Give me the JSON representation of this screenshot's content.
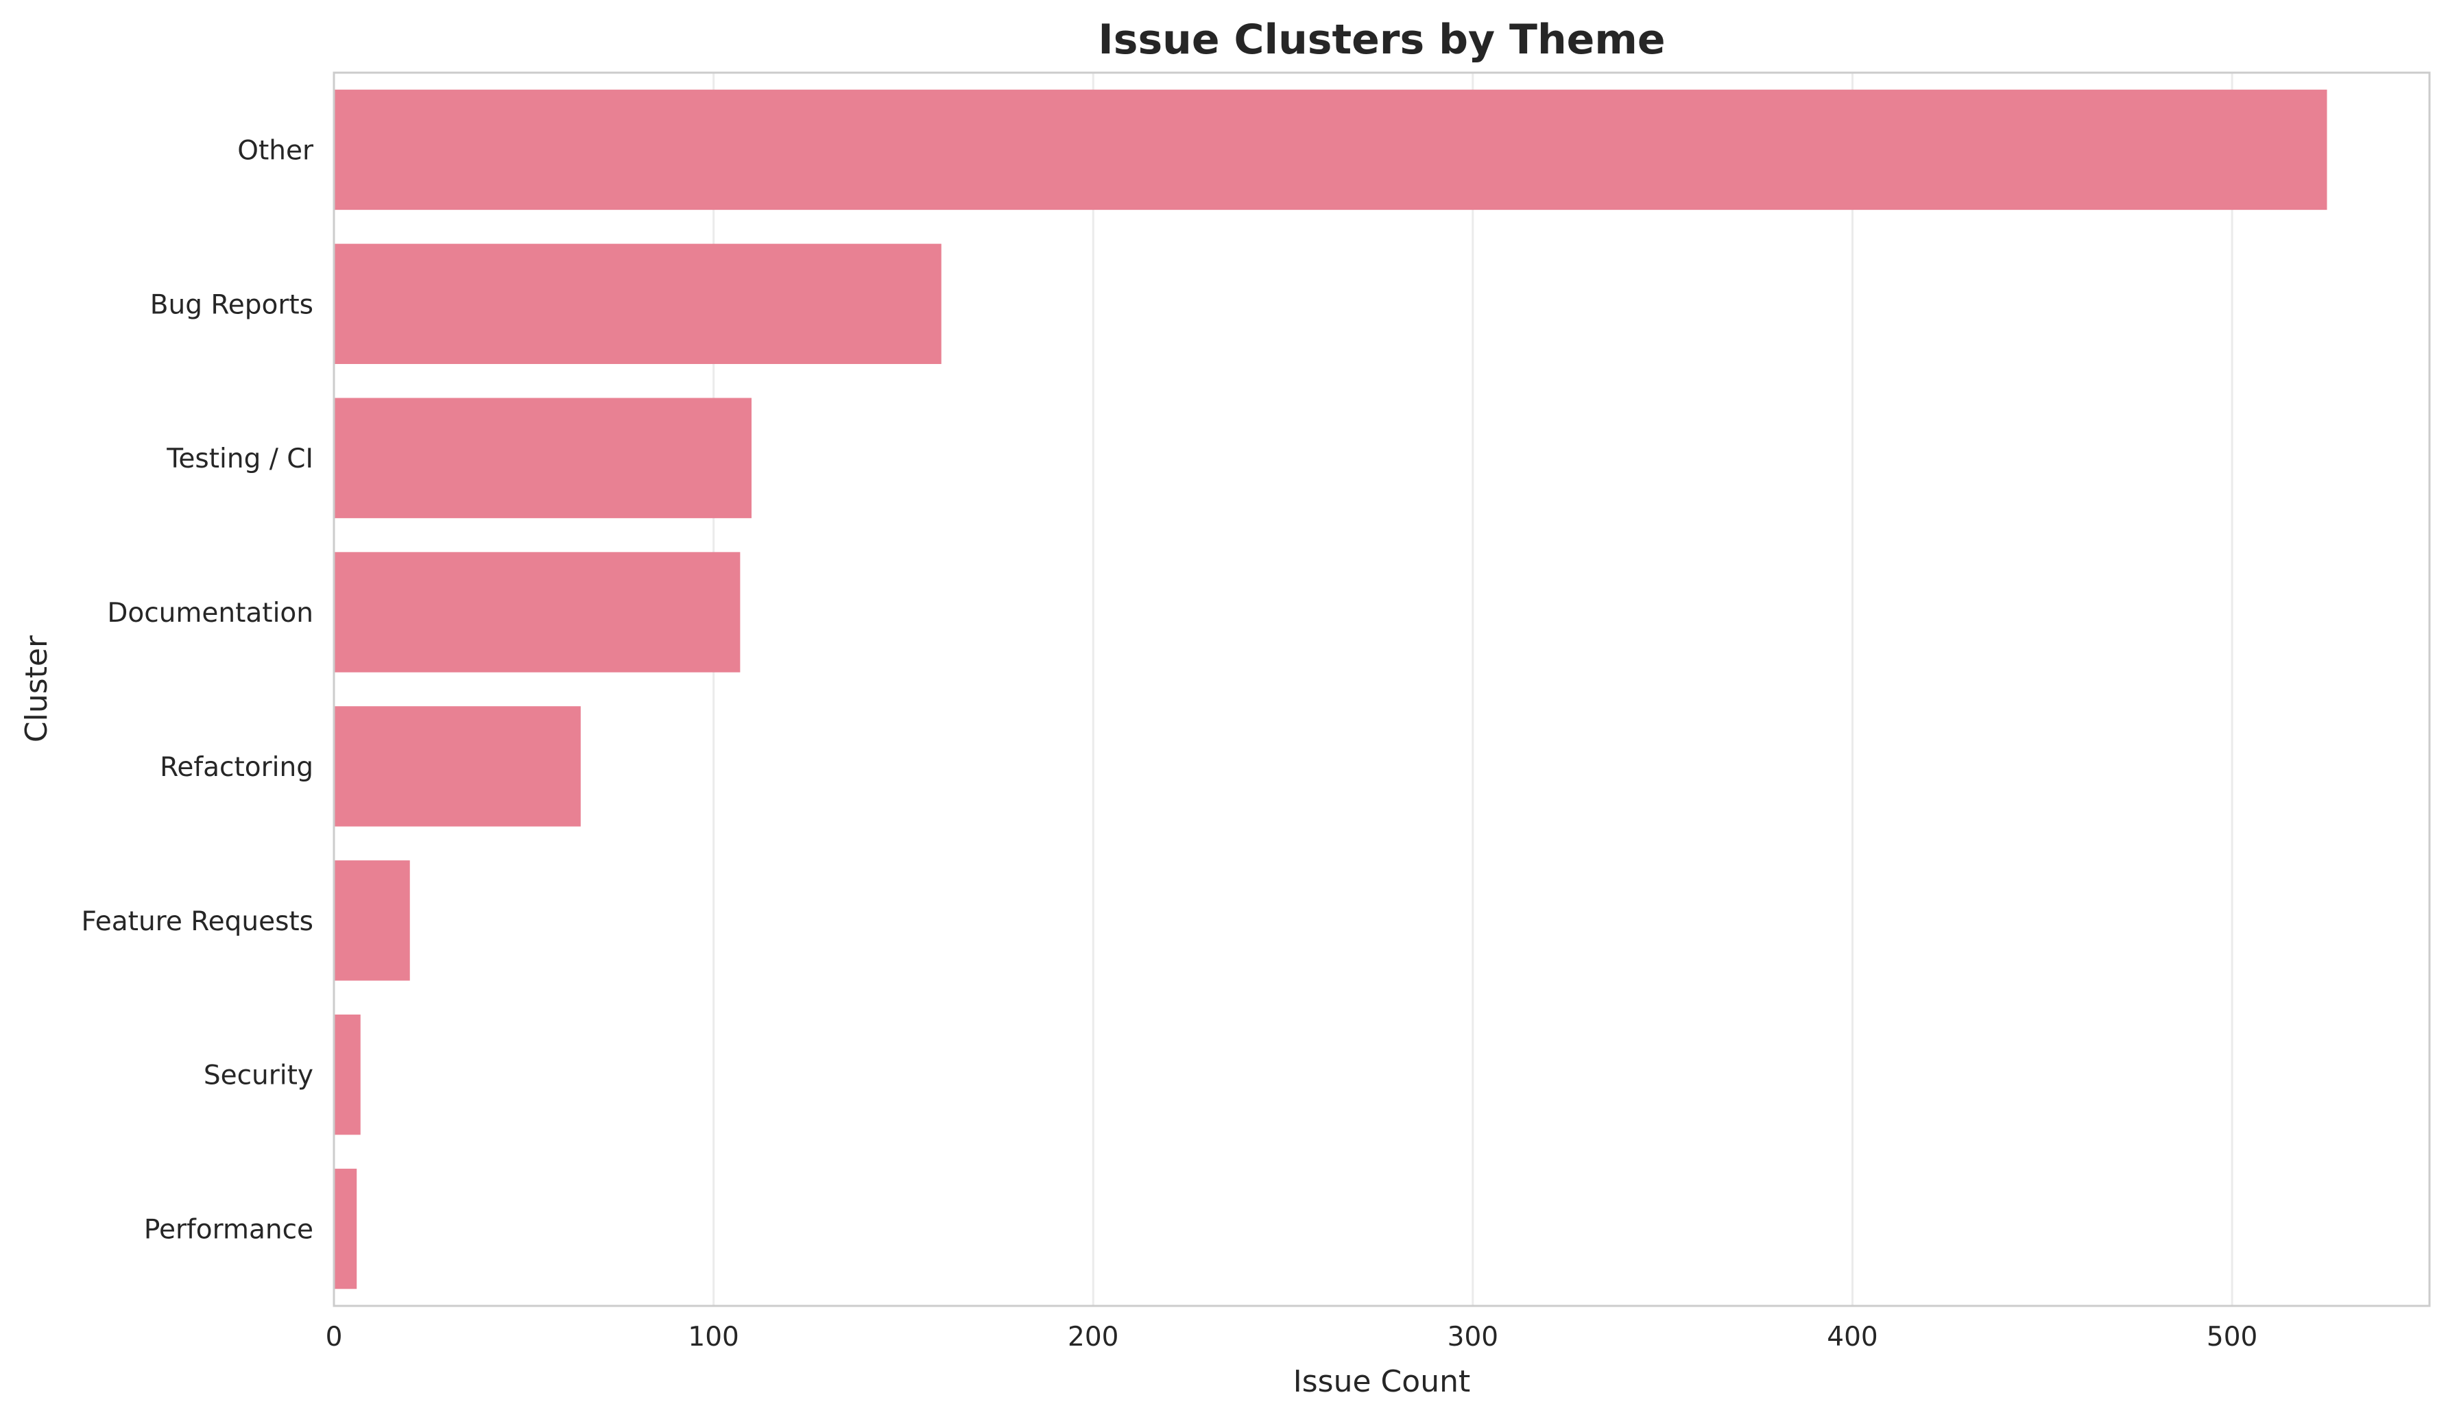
{
  "chart_data": {
    "type": "bar",
    "orientation": "horizontal",
    "title": "Issue Clusters by Theme",
    "xlabel": "Issue Count",
    "ylabel": "Cluster",
    "categories": [
      "Other",
      "Bug Reports",
      "Testing / CI",
      "Documentation",
      "Refactoring",
      "Feature Requests",
      "Security",
      "Performance"
    ],
    "values": [
      525,
      160,
      110,
      107,
      65,
      20,
      7,
      6
    ],
    "xlim": [
      0,
      552
    ],
    "xticks": [
      0,
      100,
      200,
      300,
      400,
      500
    ],
    "grid": "vertical",
    "bar_color": "#e88193",
    "grid_color": "#ebebeb",
    "frame_color": "#cccccc"
  }
}
